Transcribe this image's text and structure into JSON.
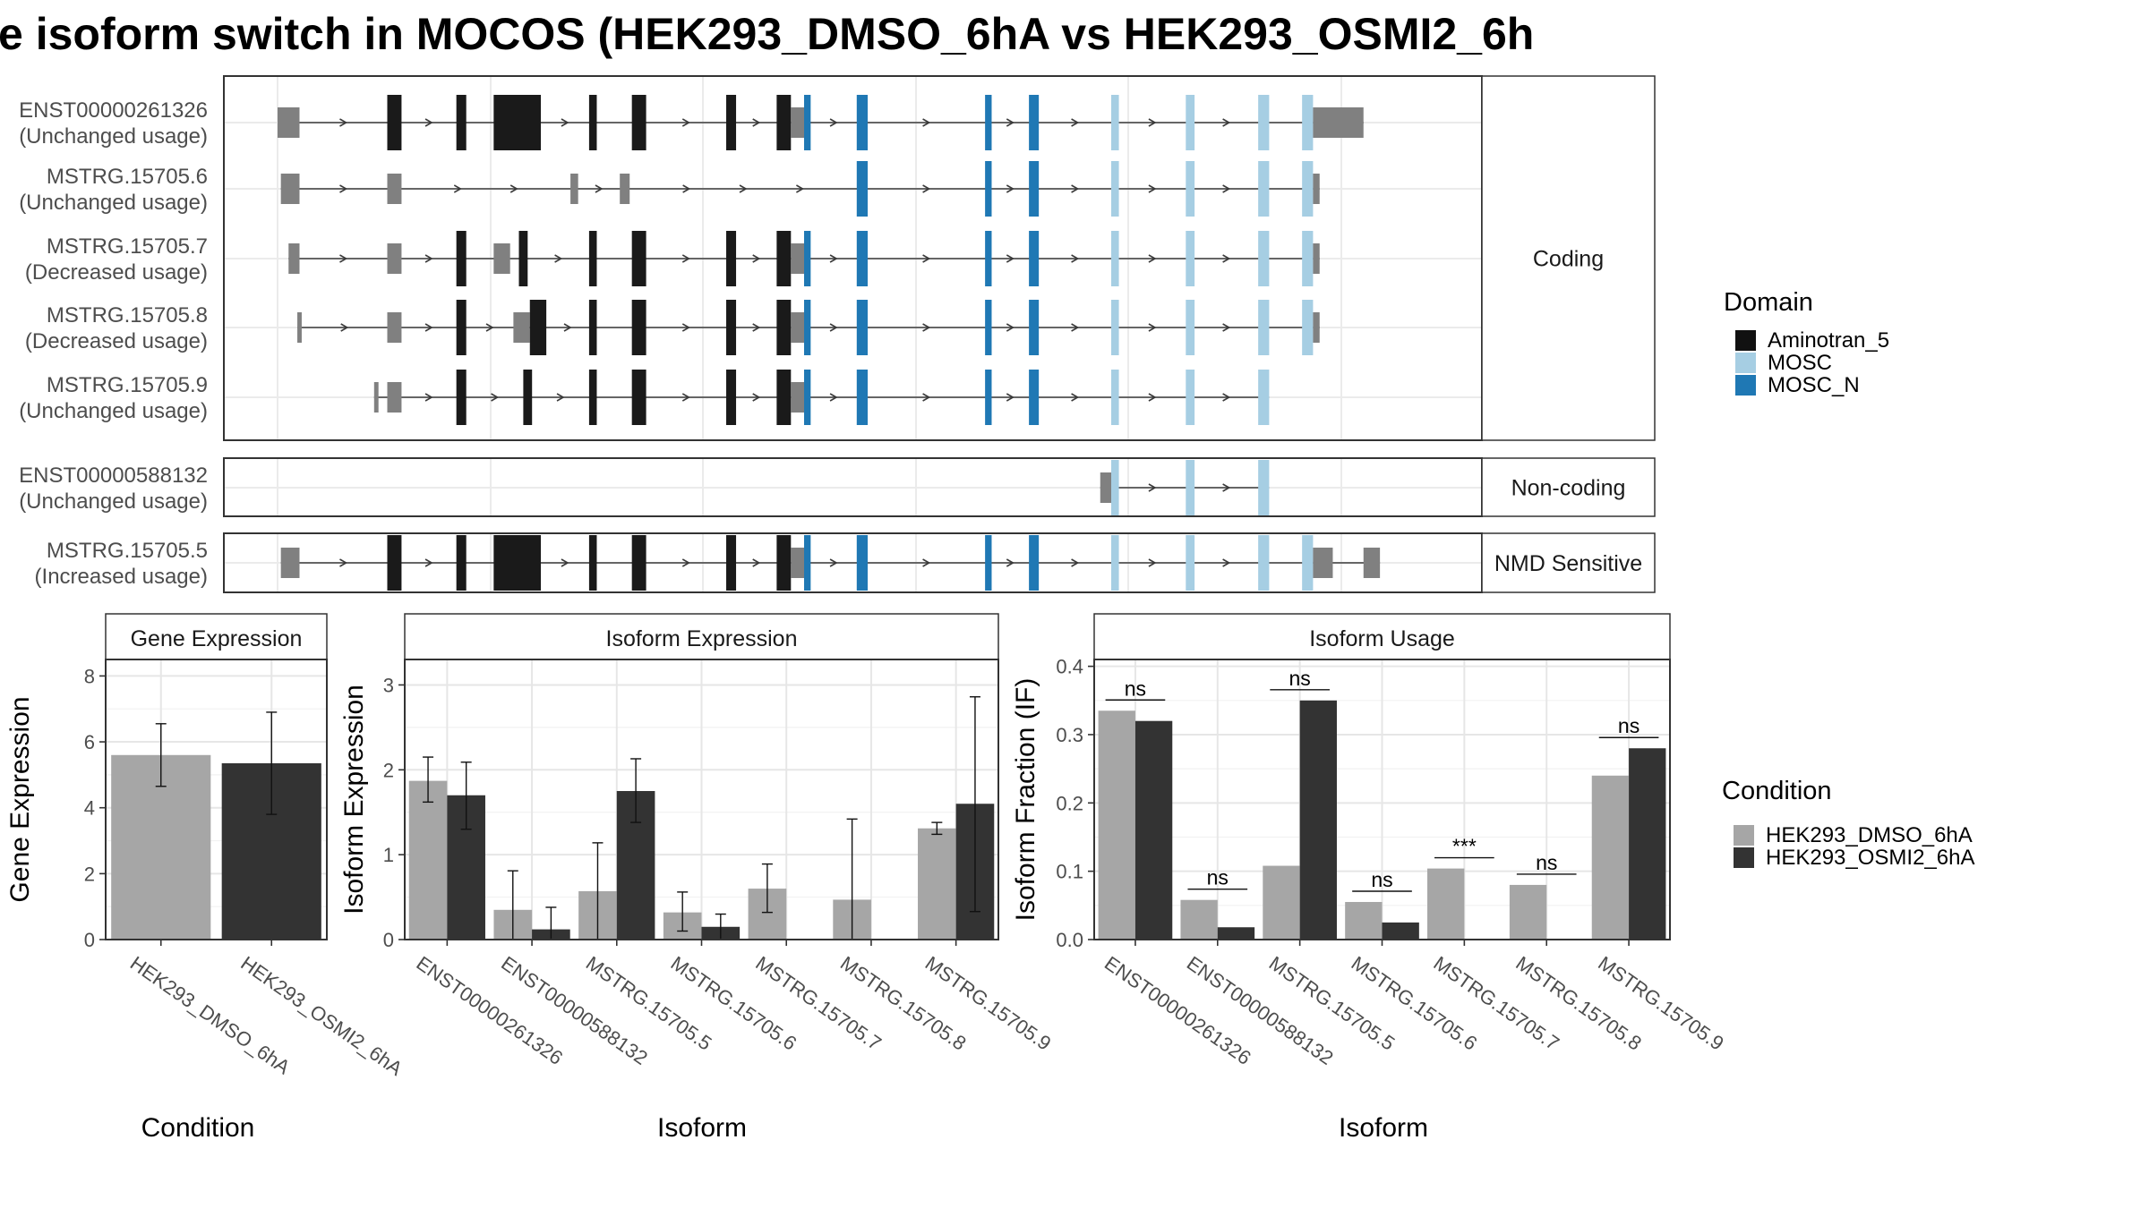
{
  "title": "e isoform switch in MOCOS (HEK293_DMSO_6hA vs HEK293_OSMI2_6h",
  "colors": {
    "utr": "#808080",
    "cds": "#1a1a1a",
    "intron": "#3a3a3a",
    "Aminotran_5": "#111111",
    "MOSC": "#a6cee3",
    "MOSC_N": "#1f78b4",
    "dmso": "#a6a6a6",
    "osmi2": "#333333",
    "strip_fill": "#ffffff"
  },
  "structure": {
    "genomic_range": [
      0,
      1000
    ],
    "exon_labels_note": "",
    "panels": [
      {
        "label": "Coding",
        "transcripts": [
          {
            "id": "ENST00000261326",
            "usage": "(Unchanged usage)",
            "span": [
              0,
              990
            ],
            "blocks": [
              {
                "s": 0,
                "e": 20,
                "k": "utr"
              },
              {
                "s": 100,
                "e": 113,
                "k": "cds"
              },
              {
                "s": 163,
                "e": 172,
                "k": "cds"
              },
              {
                "s": 197,
                "e": 240,
                "k": "cds"
              },
              {
                "s": 284,
                "e": 291,
                "k": "cds"
              },
              {
                "s": 323,
                "e": 336,
                "k": "cds"
              },
              {
                "s": 409,
                "e": 418,
                "k": "cds"
              },
              {
                "s": 455,
                "e": 468,
                "k": "cds"
              },
              {
                "s": 468,
                "e": 480,
                "k": "utr"
              },
              {
                "s": 480,
                "e": 486,
                "k": "MOSC_N"
              },
              {
                "s": 528,
                "e": 538,
                "k": "MOSC_N"
              },
              {
                "s": 645,
                "e": 651,
                "k": "MOSC_N"
              },
              {
                "s": 685,
                "e": 694,
                "k": "MOSC_N"
              },
              {
                "s": 760,
                "e": 767,
                "k": "MOSC"
              },
              {
                "s": 828,
                "e": 836,
                "k": "MOSC"
              },
              {
                "s": 894,
                "e": 904,
                "k": "MOSC"
              },
              {
                "s": 934,
                "e": 944,
                "k": "MOSC"
              },
              {
                "s": 944,
                "e": 990,
                "k": "utr"
              }
            ]
          },
          {
            "id": "MSTRG.15705.6",
            "usage": "(Unchanged usage)",
            "span": [
              3,
              950
            ],
            "blocks": [
              {
                "s": 3,
                "e": 20,
                "k": "utr"
              },
              {
                "s": 100,
                "e": 113,
                "k": "utr"
              },
              {
                "s": 267,
                "e": 274,
                "k": "utr"
              },
              {
                "s": 312,
                "e": 321,
                "k": "utr"
              },
              {
                "s": 528,
                "e": 538,
                "k": "MOSC_N"
              },
              {
                "s": 645,
                "e": 651,
                "k": "MOSC_N"
              },
              {
                "s": 685,
                "e": 694,
                "k": "MOSC_N"
              },
              {
                "s": 760,
                "e": 767,
                "k": "MOSC"
              },
              {
                "s": 828,
                "e": 836,
                "k": "MOSC"
              },
              {
                "s": 894,
                "e": 904,
                "k": "MOSC"
              },
              {
                "s": 934,
                "e": 944,
                "k": "MOSC"
              },
              {
                "s": 944,
                "e": 950,
                "k": "utr"
              }
            ]
          },
          {
            "id": "MSTRG.15705.7",
            "usage": "(Decreased usage)",
            "span": [
              10,
              950
            ],
            "blocks": [
              {
                "s": 10,
                "e": 20,
                "k": "utr"
              },
              {
                "s": 100,
                "e": 113,
                "k": "utr"
              },
              {
                "s": 163,
                "e": 172,
                "k": "cds"
              },
              {
                "s": 197,
                "e": 212,
                "k": "utr"
              },
              {
                "s": 220,
                "e": 228,
                "k": "cds"
              },
              {
                "s": 284,
                "e": 291,
                "k": "cds"
              },
              {
                "s": 323,
                "e": 336,
                "k": "cds"
              },
              {
                "s": 409,
                "e": 418,
                "k": "cds"
              },
              {
                "s": 455,
                "e": 468,
                "k": "cds"
              },
              {
                "s": 468,
                "e": 480,
                "k": "utr"
              },
              {
                "s": 480,
                "e": 486,
                "k": "MOSC_N"
              },
              {
                "s": 528,
                "e": 538,
                "k": "MOSC_N"
              },
              {
                "s": 645,
                "e": 651,
                "k": "MOSC_N"
              },
              {
                "s": 685,
                "e": 694,
                "k": "MOSC_N"
              },
              {
                "s": 760,
                "e": 767,
                "k": "MOSC"
              },
              {
                "s": 828,
                "e": 836,
                "k": "MOSC"
              },
              {
                "s": 894,
                "e": 904,
                "k": "MOSC"
              },
              {
                "s": 934,
                "e": 944,
                "k": "MOSC"
              },
              {
                "s": 944,
                "e": 950,
                "k": "utr"
              }
            ]
          },
          {
            "id": "MSTRG.15705.8",
            "usage": "(Decreased usage)",
            "span": [
              18,
              950
            ],
            "blocks": [
              {
                "s": 18,
                "e": 22,
                "k": "utr"
              },
              {
                "s": 100,
                "e": 113,
                "k": "utr"
              },
              {
                "s": 163,
                "e": 172,
                "k": "cds"
              },
              {
                "s": 215,
                "e": 230,
                "k": "utr"
              },
              {
                "s": 230,
                "e": 245,
                "k": "cds"
              },
              {
                "s": 284,
                "e": 291,
                "k": "cds"
              },
              {
                "s": 323,
                "e": 336,
                "k": "cds"
              },
              {
                "s": 409,
                "e": 418,
                "k": "cds"
              },
              {
                "s": 455,
                "e": 468,
                "k": "cds"
              },
              {
                "s": 468,
                "e": 480,
                "k": "utr"
              },
              {
                "s": 480,
                "e": 486,
                "k": "MOSC_N"
              },
              {
                "s": 528,
                "e": 538,
                "k": "MOSC_N"
              },
              {
                "s": 645,
                "e": 651,
                "k": "MOSC_N"
              },
              {
                "s": 685,
                "e": 694,
                "k": "MOSC_N"
              },
              {
                "s": 760,
                "e": 767,
                "k": "MOSC"
              },
              {
                "s": 828,
                "e": 836,
                "k": "MOSC"
              },
              {
                "s": 894,
                "e": 904,
                "k": "MOSC"
              },
              {
                "s": 934,
                "e": 944,
                "k": "MOSC"
              },
              {
                "s": 944,
                "e": 950,
                "k": "utr"
              }
            ]
          },
          {
            "id": "MSTRG.15705.9",
            "usage": "(Unchanged usage)",
            "span": [
              88,
              904
            ],
            "blocks": [
              {
                "s": 88,
                "e": 92,
                "k": "utr"
              },
              {
                "s": 100,
                "e": 113,
                "k": "utr"
              },
              {
                "s": 163,
                "e": 172,
                "k": "cds"
              },
              {
                "s": 224,
                "e": 232,
                "k": "cds"
              },
              {
                "s": 284,
                "e": 291,
                "k": "cds"
              },
              {
                "s": 323,
                "e": 336,
                "k": "cds"
              },
              {
                "s": 409,
                "e": 418,
                "k": "cds"
              },
              {
                "s": 455,
                "e": 468,
                "k": "cds"
              },
              {
                "s": 468,
                "e": 480,
                "k": "utr"
              },
              {
                "s": 480,
                "e": 486,
                "k": "MOSC_N"
              },
              {
                "s": 528,
                "e": 538,
                "k": "MOSC_N"
              },
              {
                "s": 645,
                "e": 651,
                "k": "MOSC_N"
              },
              {
                "s": 685,
                "e": 694,
                "k": "MOSC_N"
              },
              {
                "s": 760,
                "e": 767,
                "k": "MOSC"
              },
              {
                "s": 828,
                "e": 836,
                "k": "MOSC"
              },
              {
                "s": 894,
                "e": 904,
                "k": "MOSC"
              }
            ]
          }
        ]
      },
      {
        "label": "Non-coding",
        "transcripts": [
          {
            "id": "ENST00000588132",
            "usage": "(Unchanged usage)",
            "span": [
              750,
              904
            ],
            "blocks": [
              {
                "s": 750,
                "e": 760,
                "k": "utr"
              },
              {
                "s": 760,
                "e": 767,
                "k": "MOSC"
              },
              {
                "s": 828,
                "e": 836,
                "k": "MOSC"
              },
              {
                "s": 894,
                "e": 904,
                "k": "MOSC"
              }
            ]
          }
        ]
      },
      {
        "label": "NMD Sensitive",
        "transcripts": [
          {
            "id": "MSTRG.15705.5",
            "usage": "(Increased usage)",
            "span": [
              3,
              1005
            ],
            "blocks": [
              {
                "s": 3,
                "e": 20,
                "k": "utr"
              },
              {
                "s": 100,
                "e": 113,
                "k": "cds"
              },
              {
                "s": 163,
                "e": 172,
                "k": "cds"
              },
              {
                "s": 197,
                "e": 240,
                "k": "cds"
              },
              {
                "s": 284,
                "e": 291,
                "k": "cds"
              },
              {
                "s": 323,
                "e": 336,
                "k": "cds"
              },
              {
                "s": 409,
                "e": 418,
                "k": "cds"
              },
              {
                "s": 455,
                "e": 468,
                "k": "cds"
              },
              {
                "s": 468,
                "e": 480,
                "k": "utr"
              },
              {
                "s": 480,
                "e": 486,
                "k": "MOSC_N"
              },
              {
                "s": 528,
                "e": 538,
                "k": "MOSC_N"
              },
              {
                "s": 645,
                "e": 651,
                "k": "MOSC_N"
              },
              {
                "s": 685,
                "e": 694,
                "k": "MOSC_N"
              },
              {
                "s": 760,
                "e": 767,
                "k": "MOSC"
              },
              {
                "s": 828,
                "e": 836,
                "k": "MOSC"
              },
              {
                "s": 894,
                "e": 904,
                "k": "MOSC"
              },
              {
                "s": 934,
                "e": 944,
                "k": "MOSC"
              },
              {
                "s": 944,
                "e": 962,
                "k": "utr"
              },
              {
                "s": 990,
                "e": 1005,
                "k": "utr"
              }
            ]
          }
        ]
      }
    ]
  },
  "legends": {
    "domain_title": "Domain",
    "domain_items": [
      {
        "label": "Aminotran_5",
        "color_key": "Aminotran_5"
      },
      {
        "label": "MOSC",
        "color_key": "MOSC"
      },
      {
        "label": "MOSC_N",
        "color_key": "MOSC_N"
      }
    ],
    "condition_title": "Condition",
    "condition_items": [
      {
        "label": "HEK293_DMSO_6hA",
        "color_key": "dmso"
      },
      {
        "label": "HEK293_OSMI2_6hA",
        "color_key": "osmi2"
      }
    ]
  },
  "chart_data": [
    {
      "type": "bar",
      "title": "Gene Expression",
      "xlabel": "Condition",
      "ylabel": "Gene Expression",
      "ylim": [
        0,
        8.5
      ],
      "yticks": [
        0,
        2,
        4,
        6,
        8
      ],
      "categories": [
        "HEK293_DMSO_6hA",
        "HEK293_OSMI2_6hA"
      ],
      "series": [
        {
          "name": "HEK293_DMSO_6hA",
          "values": [
            5.6,
            null
          ],
          "err_low": [
            4.65,
            null
          ],
          "err_high": [
            6.55,
            null
          ]
        },
        {
          "name": "HEK293_OSMI2_6hA",
          "values": [
            null,
            5.35
          ],
          "err_low": [
            null,
            3.8
          ],
          "err_high": [
            null,
            6.9
          ]
        }
      ]
    },
    {
      "type": "bar",
      "title": "Isoform Expression",
      "xlabel": "Isoform",
      "ylabel": "Isoform Expression",
      "ylim": [
        0,
        3.3
      ],
      "yticks": [
        0,
        1,
        2,
        3
      ],
      "categories": [
        "ENST00000261326",
        "ENST00000588132",
        "MSTRG.15705.5",
        "MSTRG.15705.6",
        "MSTRG.15705.7",
        "MSTRG.15705.8",
        "MSTRG.15705.9"
      ],
      "series": [
        {
          "name": "HEK293_DMSO_6hA",
          "values": [
            1.87,
            0.35,
            0.57,
            0.32,
            0.6,
            0.47,
            1.31
          ],
          "err_low": [
            1.62,
            0.0,
            0.0,
            0.1,
            0.32,
            0.0,
            1.24
          ],
          "err_high": [
            2.15,
            0.81,
            1.14,
            0.56,
            0.89,
            1.42,
            1.38
          ]
        },
        {
          "name": "HEK293_OSMI2_6hA",
          "values": [
            1.7,
            0.12,
            1.75,
            0.15,
            0.0,
            0.0,
            1.6
          ],
          "err_low": [
            1.3,
            0.0,
            1.38,
            0.0,
            0.0,
            0.0,
            0.33
          ],
          "err_high": [
            2.09,
            0.38,
            2.13,
            0.3,
            0.0,
            0.0,
            2.86
          ]
        }
      ]
    },
    {
      "type": "bar",
      "title": "Isoform Usage",
      "xlabel": "Isoform",
      "ylabel": "Isoform Fraction (IF)",
      "ylim": [
        0,
        0.41
      ],
      "yticks": [
        0.0,
        0.1,
        0.2,
        0.3,
        0.4
      ],
      "ytick_labels": [
        "0.0",
        "0.1",
        "0.2",
        "0.3",
        "0.4"
      ],
      "categories": [
        "ENST00000261326",
        "ENST00000588132",
        "MSTRG.15705.5",
        "MSTRG.15705.6",
        "MSTRG.15705.7",
        "MSTRG.15705.8",
        "MSTRG.15705.9"
      ],
      "series": [
        {
          "name": "HEK293_DMSO_6hA",
          "values": [
            0.335,
            0.058,
            0.108,
            0.055,
            0.104,
            0.08,
            0.24
          ]
        },
        {
          "name": "HEK293_OSMI2_6hA",
          "values": [
            0.32,
            0.018,
            0.35,
            0.025,
            0.0,
            0.0,
            0.28
          ]
        }
      ],
      "significance": [
        "ns",
        "ns",
        "ns",
        "ns",
        "***",
        "ns",
        "ns"
      ]
    }
  ]
}
